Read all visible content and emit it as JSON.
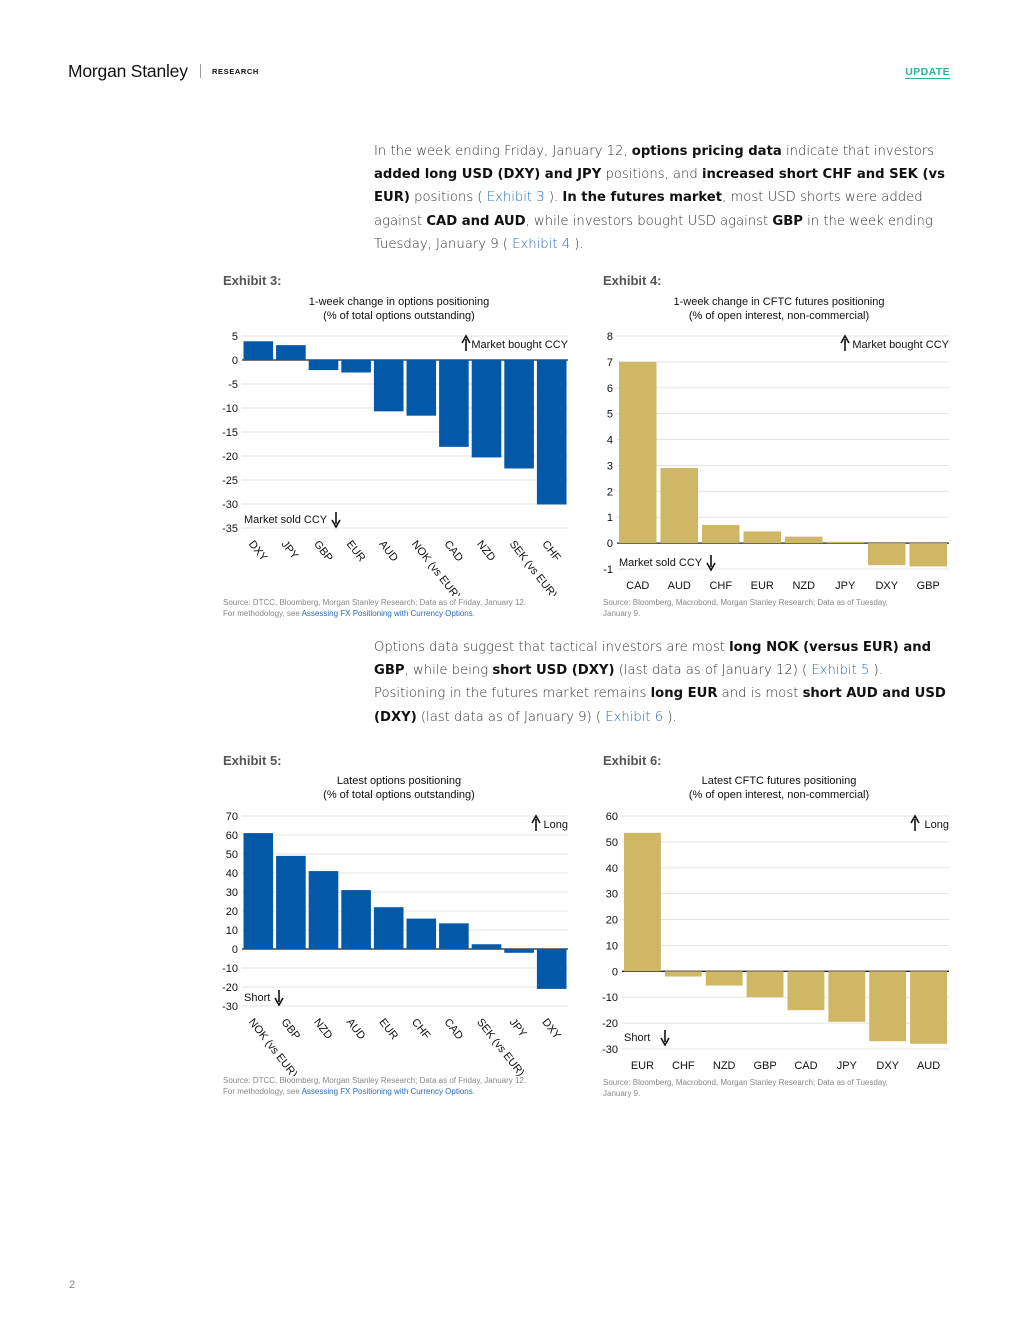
{
  "header": {
    "logo": "Morgan Stanley",
    "section": "RESEARCH",
    "badge": "UPDATE"
  },
  "para1": {
    "t1": "In the week ending Friday, January 12, ",
    "b1": "options pricing data",
    "t2": " indicate that investors ",
    "b2": "added long USD (DXY) and JPY",
    "t3": " positions, and ",
    "b3": "increased short CHF and SEK (vs EUR)",
    "t4": " positions ( ",
    "l1": "Exhibit 3",
    "t5": " ). ",
    "b4": "In the futures market",
    "t6": ", most USD shorts were added against ",
    "b5": "CAD and AUD",
    "t7": ", while investors bought USD against ",
    "b6": "GBP",
    "t8": " in the week ending Tuesday, January 9 ( ",
    "l2": "Exhibit 4",
    "t9": " )."
  },
  "para2": {
    "t1": "Options data suggest that tactical investors are most ",
    "b1": "long NOK (versus EUR) and GBP",
    "t2": ", while being ",
    "b2": "short USD (DXY)",
    "t3": " (last data as of January 12) ( ",
    "l1": "Exhibit 5",
    "t4": " ). Positioning in the futures market remains ",
    "b3": "long EUR",
    "t5": " and is most ",
    "b4": "short AUD and USD (DXY)",
    "t6": " (last data as of January 9) ( ",
    "l2": "Exhibit 6",
    "t7": " )."
  },
  "exhibits": {
    "e3": {
      "label": "Exhibit 3:",
      "source_l1": "Source: DTCC, Bloomberg, Morgan Stanley Research; Data as of Friday, January 12.",
      "source_l2_pre": "For methodology, see ",
      "source_l2_link": "Assessing FX Positioning with Currency Options",
      "source_l2_post": "."
    },
    "e4": {
      "label": "Exhibit 4:",
      "source_l1": "Source: Bloomberg, Macrobond, Morgan Stanley Research; Data as of Tuesday,",
      "source_l2": "January 9."
    },
    "e5": {
      "label": "Exhibit 5:",
      "source_l1": "Source: DTCC, Bloomberg, Morgan Stanley Research; Data as of Friday, January 12.",
      "source_l2_pre": "For methodology, see ",
      "source_l2_link": "Assessing FX Positioning with Currency Options",
      "source_l2_post": "."
    },
    "e6": {
      "label": "Exhibit 6:",
      "source_l1": "Source: Bloomberg, Macrobond, Morgan Stanley Research; Data as of Tuesday,",
      "source_l2": "January 9."
    }
  },
  "colors": {
    "blue": "#0458a8",
    "gold": "#cfb766",
    "brand_green": "#2bb39a"
  },
  "chart_data": [
    {
      "id": "ex3",
      "type": "bar",
      "title": "1-week change in options positioning",
      "subtitle": "(% of total options outstanding)",
      "categories": [
        "DXY",
        "JPY",
        "GBP",
        "EUR",
        "AUD",
        "NOK (vs EUR)",
        "CAD",
        "NZD",
        "SEK (vs EUR)",
        "CHF"
      ],
      "values": [
        3.9,
        3.1,
        -2.1,
        -2.6,
        -10.7,
        -11.6,
        -18.1,
        -20.3,
        -22.6,
        -30.1
      ],
      "ylim": [
        -35,
        5
      ],
      "yticks": [
        5,
        0,
        -5,
        -10,
        -15,
        -20,
        -25,
        -30,
        -35
      ],
      "color": "#0458a8",
      "annotation_up": "Market bought CCY",
      "annotation_down": "Market sold CCY",
      "rotate_labels": true
    },
    {
      "id": "ex4",
      "type": "bar",
      "title": "1-week change in CFTC futures positioning",
      "subtitle": "(% of open interest, non-commercial)",
      "categories": [
        "CAD",
        "AUD",
        "CHF",
        "EUR",
        "NZD",
        "JPY",
        "DXY",
        "GBP"
      ],
      "values": [
        7.0,
        2.9,
        0.7,
        0.45,
        0.25,
        0.05,
        -0.85,
        -0.9
      ],
      "ylim": [
        -1,
        8
      ],
      "yticks": [
        8,
        7,
        6,
        5,
        4,
        3,
        2,
        1,
        0,
        -1
      ],
      "color": "#cfb766",
      "annotation_up": "Market bought CCY",
      "annotation_down": "Market sold CCY",
      "rotate_labels": false
    },
    {
      "id": "ex5",
      "type": "bar",
      "title": "Latest options positioning",
      "subtitle": "(% of total options outstanding)",
      "categories": [
        "NOK (vs EUR)",
        "GBP",
        "NZD",
        "AUD",
        "EUR",
        "CHF",
        "CAD",
        "SEK (vs EUR)",
        "JPY",
        "DXY"
      ],
      "values": [
        61,
        49,
        41,
        31,
        22,
        16,
        13.5,
        2.5,
        -2,
        -21
      ],
      "ylim": [
        -30,
        70
      ],
      "yticks": [
        70,
        60,
        50,
        40,
        30,
        20,
        10,
        0,
        -10,
        -20,
        -30
      ],
      "color": "#0458a8",
      "annotation_up": "Long",
      "annotation_down": "Short",
      "rotate_labels": true
    },
    {
      "id": "ex6",
      "type": "bar",
      "title": "Latest CFTC futures positioning",
      "subtitle": "(% of open interest, non-commercial)",
      "categories": [
        "EUR",
        "CHF",
        "NZD",
        "GBP",
        "CAD",
        "JPY",
        "DXY",
        "AUD"
      ],
      "values": [
        53.5,
        -2,
        -5.5,
        -10,
        -15,
        -19.5,
        -27,
        -28
      ],
      "ylim": [
        -30,
        60
      ],
      "yticks": [
        60,
        50,
        40,
        30,
        20,
        10,
        0,
        -10,
        -20,
        -30
      ],
      "color": "#cfb766",
      "annotation_up": "Long",
      "annotation_down": "Short",
      "rotate_labels": false
    }
  ],
  "page_number": "2"
}
